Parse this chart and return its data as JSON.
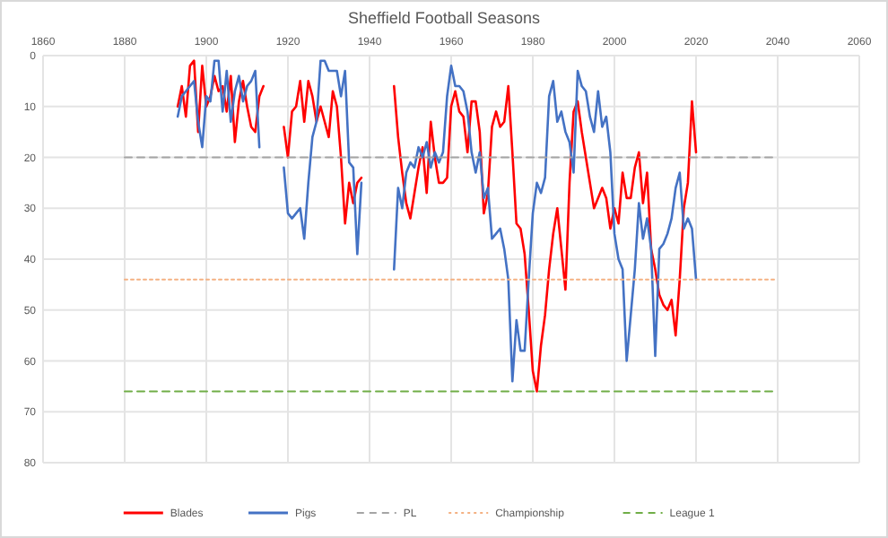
{
  "chart_data": {
    "type": "line",
    "title": "Sheffield Football Seasons",
    "xlim": [
      1860,
      2060
    ],
    "xticks": [
      1860,
      1880,
      1900,
      1920,
      1940,
      1960,
      1980,
      2000,
      2020,
      2040,
      2060
    ],
    "ylim": [
      80,
      0
    ],
    "yticks": [
      0,
      10,
      20,
      30,
      40,
      50,
      60,
      70,
      80
    ],
    "grid": true,
    "legend": "bottom",
    "series": [
      {
        "name": "Blades",
        "color": "#ff0000",
        "x": [
          1893,
          1894,
          1895,
          1896,
          1897,
          1898,
          1899,
          1900,
          1901,
          1902,
          1903,
          1904,
          1905,
          1906,
          1907,
          1908,
          1909,
          1910,
          1911,
          1912,
          1913,
          1914,
          1916,
          1919,
          1920,
          1921,
          1922,
          1923,
          1924,
          1925,
          1926,
          1927,
          1928,
          1929,
          1930,
          1931,
          1932,
          1933,
          1934,
          1935,
          1936,
          1937,
          1938,
          1942,
          1946,
          1947,
          1948,
          1949,
          1950,
          1951,
          1952,
          1953,
          1954,
          1955,
          1956,
          1957,
          1958,
          1959,
          1960,
          1961,
          1962,
          1963,
          1964,
          1965,
          1966,
          1967,
          1968,
          1969,
          1970,
          1971,
          1972,
          1973,
          1974,
          1975,
          1976,
          1977,
          1978,
          1979,
          1980,
          1981,
          1982,
          1983,
          1984,
          1985,
          1986,
          1987,
          1988,
          1989,
          1990,
          1991,
          1992,
          1993,
          1994,
          1995,
          1996,
          1997,
          1998,
          1999,
          2000,
          2001,
          2002,
          2003,
          2004,
          2005,
          2006,
          2007,
          2008,
          2009,
          2010,
          2011,
          2012,
          2013,
          2014,
          2015,
          2016,
          2017,
          2018,
          2019,
          2020
        ],
        "values": [
          10,
          6,
          12,
          2,
          1,
          15,
          2,
          10,
          8,
          4,
          7,
          6,
          11,
          4,
          17,
          9,
          5,
          10,
          14,
          15,
          8,
          6,
          null,
          14,
          20,
          11,
          10,
          5,
          13,
          5,
          8,
          13,
          10,
          13,
          16,
          7,
          10,
          20,
          33,
          25,
          29,
          25,
          24,
          null,
          6,
          16,
          23,
          29,
          32,
          27,
          22,
          18,
          27,
          13,
          20,
          25,
          25,
          24,
          10,
          7,
          11,
          12,
          19,
          9,
          9,
          15,
          31,
          27,
          14,
          11,
          14,
          13,
          6,
          19,
          33,
          34,
          39,
          50,
          62,
          66,
          57,
          51,
          42,
          35,
          30,
          38,
          46,
          25,
          11,
          9,
          15,
          20,
          25,
          30,
          28,
          26,
          28,
          34,
          30,
          33,
          23,
          28,
          28,
          22,
          19,
          29,
          23,
          38,
          42,
          47,
          49,
          50,
          48,
          55,
          44,
          30,
          25,
          9,
          19
        ]
      },
      {
        "name": "Pigs",
        "color": "#4472c4",
        "x": [
          1893,
          1894,
          1895,
          1896,
          1897,
          1898,
          1899,
          1900,
          1901,
          1902,
          1903,
          1904,
          1905,
          1906,
          1907,
          1908,
          1909,
          1910,
          1911,
          1912,
          1913,
          1916,
          1919,
          1920,
          1921,
          1922,
          1923,
          1924,
          1925,
          1926,
          1927,
          1928,
          1929,
          1930,
          1931,
          1932,
          1933,
          1934,
          1935,
          1936,
          1937,
          1938,
          1942,
          1946,
          1947,
          1948,
          1949,
          1950,
          1951,
          1952,
          1953,
          1954,
          1955,
          1956,
          1957,
          1958,
          1959,
          1960,
          1961,
          1962,
          1963,
          1964,
          1965,
          1966,
          1967,
          1968,
          1969,
          1970,
          1971,
          1972,
          1973,
          1974,
          1975,
          1976,
          1977,
          1978,
          1979,
          1980,
          1981,
          1982,
          1983,
          1984,
          1985,
          1986,
          1987,
          1988,
          1989,
          1990,
          1991,
          1992,
          1993,
          1994,
          1995,
          1996,
          1997,
          1998,
          1999,
          2000,
          2001,
          2002,
          2003,
          2004,
          2005,
          2006,
          2007,
          2008,
          2009,
          2010,
          2011,
          2012,
          2013,
          2014,
          2015,
          2016,
          2017,
          2018,
          2019,
          2020
        ],
        "values": [
          12,
          8,
          7,
          6,
          5,
          13,
          18,
          8,
          9,
          1,
          1,
          11,
          3,
          13,
          7,
          4,
          9,
          6,
          5,
          3,
          18,
          null,
          22,
          31,
          32,
          31,
          30,
          36,
          25,
          16,
          13,
          1,
          1,
          3,
          3,
          3,
          8,
          3,
          21,
          22,
          39,
          25,
          null,
          42,
          26,
          30,
          23,
          21,
          22,
          18,
          20,
          17,
          22,
          19,
          21,
          19,
          8,
          2,
          6,
          6,
          7,
          11,
          19,
          23,
          19,
          28,
          26,
          36,
          35,
          34,
          38,
          44,
          64,
          52,
          58,
          58,
          44,
          31,
          25,
          27,
          24,
          8,
          5,
          13,
          11,
          15,
          17,
          23,
          3,
          6,
          7,
          12,
          15,
          7,
          14,
          12,
          19,
          35,
          40,
          42,
          60,
          51,
          42,
          29,
          36,
          32,
          38,
          59,
          38,
          37,
          35,
          32,
          26,
          23,
          34,
          32,
          34,
          44
        ]
      },
      {
        "name": "PL",
        "color": "#a5a5a5",
        "line_style": "dashed",
        "x": [
          1880,
          2040
        ],
        "values": [
          20,
          20
        ]
      },
      {
        "name": "Championship",
        "color": "#f4b183",
        "line_style": "dotted",
        "x": [
          1880,
          2040
        ],
        "values": [
          44,
          44
        ]
      },
      {
        "name": "League 1",
        "color": "#70ad47",
        "line_style": "dashed",
        "x": [
          1880,
          2040
        ],
        "values": [
          66,
          66
        ]
      }
    ]
  }
}
